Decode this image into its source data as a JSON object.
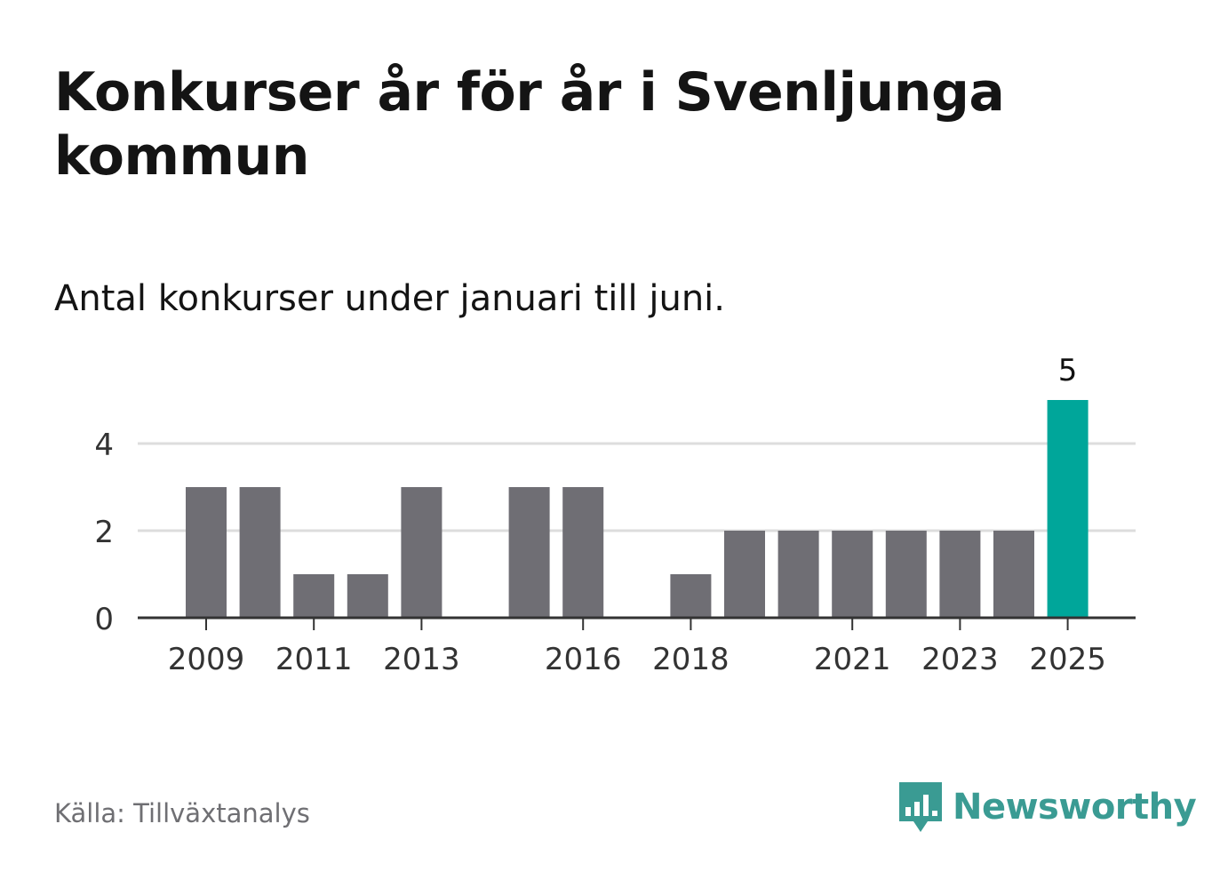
{
  "title": "Konkurser år för år i Svenljunga kommun",
  "subtitle": "Antal konkurser under januari till juni.",
  "source": "Källa: Tillväxtanalys",
  "logo": {
    "name": "Newsworthy",
    "icon": "newsworthy-bar-chart-icon"
  },
  "colors": {
    "bar": "#6f6e74",
    "highlight": "#00a69a",
    "grid": "#dddddd",
    "axis": "#333333"
  },
  "chart_data": {
    "type": "bar",
    "categories": [
      "2009",
      "2010",
      "2011",
      "2012",
      "2013",
      "2014",
      "2015",
      "2016",
      "2017",
      "2018",
      "2019",
      "2020",
      "2021",
      "2022",
      "2023",
      "2024",
      "2025"
    ],
    "values": [
      3,
      3,
      1,
      1,
      3,
      0,
      3,
      3,
      0,
      1,
      2,
      2,
      2,
      2,
      2,
      2,
      5
    ],
    "highlight_index": 16,
    "data_labels": [
      {
        "index": 16,
        "text": "5"
      }
    ],
    "x_tick_labels": [
      "2009",
      "2011",
      "2013",
      "2016",
      "2018",
      "2021",
      "2023",
      "2025"
    ],
    "y_ticks": [
      0,
      2,
      4
    ],
    "ylim": [
      0,
      5
    ],
    "grid": true,
    "xlabel": "",
    "ylabel": ""
  }
}
